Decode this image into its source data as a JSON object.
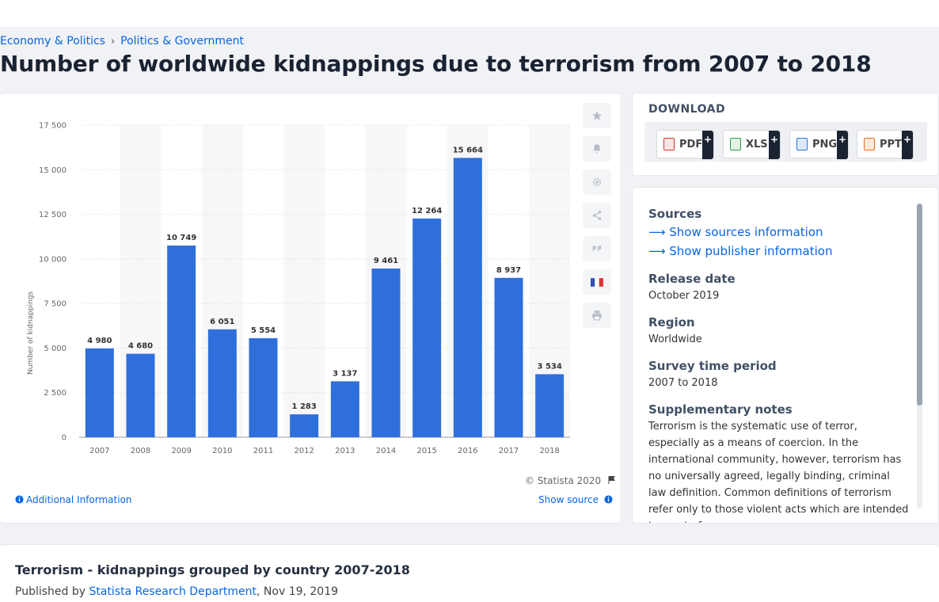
{
  "breadcrumb": {
    "items": [
      "Economy & Politics",
      "Politics & Government"
    ],
    "separator": "›"
  },
  "page_title": "Number of worldwide kidnappings due to terrorism from 2007 to 2018",
  "chart": {
    "copyright": "© Statista 2020",
    "additional_info": "Additional Information",
    "show_source": "Show source"
  },
  "chart_data": {
    "type": "bar",
    "title": "",
    "xlabel": "",
    "ylabel": "Number of kidnappings",
    "categories": [
      "2007",
      "2008",
      "2009",
      "2010",
      "2011",
      "2012",
      "2013",
      "2014",
      "2015",
      "2016",
      "2017",
      "2018"
    ],
    "values": [
      4980,
      4680,
      10749,
      6051,
      5554,
      1283,
      3137,
      9461,
      12264,
      15664,
      8937,
      3534
    ],
    "value_labels": [
      "4 980",
      "4 680",
      "10 749",
      "6 051",
      "5 554",
      "1 283",
      "3 137",
      "9 461",
      "12 264",
      "15 664",
      "8 937",
      "3 534"
    ],
    "ylim": [
      0,
      17500
    ],
    "yticks": [
      0,
      2500,
      5000,
      7500,
      10000,
      12500,
      15000,
      17500
    ],
    "ytick_labels": [
      "0",
      "2 500",
      "5 000",
      "7 500",
      "10 000",
      "12 500",
      "15 000",
      "17 500"
    ],
    "bar_color": "#2f6fdc",
    "grid": true,
    "legend": "none"
  },
  "side_icons": [
    "star-icon",
    "bell-icon",
    "gear-icon",
    "share-icon",
    "quote-icon",
    "french-flag-icon",
    "print-icon"
  ],
  "download": {
    "title": "DOWNLOAD",
    "formats": [
      {
        "label": "PDF",
        "icon": "pdf-file-icon",
        "color": "#d9362b"
      },
      {
        "label": "XLS",
        "icon": "xls-file-icon",
        "color": "#2e9b48"
      },
      {
        "label": "PNG",
        "icon": "png-file-icon",
        "color": "#2f6fdc"
      },
      {
        "label": "PPT",
        "icon": "ppt-file-icon",
        "color": "#e8701a"
      }
    ],
    "plus": "+"
  },
  "info": {
    "sources_heading": "Sources",
    "show_sources": "Show sources information",
    "show_publisher": "Show publisher information",
    "release_heading": "Release date",
    "release_value": "October 2019",
    "region_heading": "Region",
    "region_value": "Worldwide",
    "survey_heading": "Survey time period",
    "survey_value": "2007 to 2018",
    "supp_heading": "Supplementary notes",
    "supp_text": "Terrorism is the systematic use of terror, especially as a means of coercion. In the international community, however, terrorism has no universally agreed, legally binding, criminal law definition. Common definitions of terrorism refer only to those violent acts which are intended to create fear"
  },
  "related": {
    "title": "Terrorism - kidnappings grouped by country 2007-2018",
    "published_by": "Published by",
    "author": "Statista Research Department",
    "date": ", Nov 19, 2019"
  }
}
